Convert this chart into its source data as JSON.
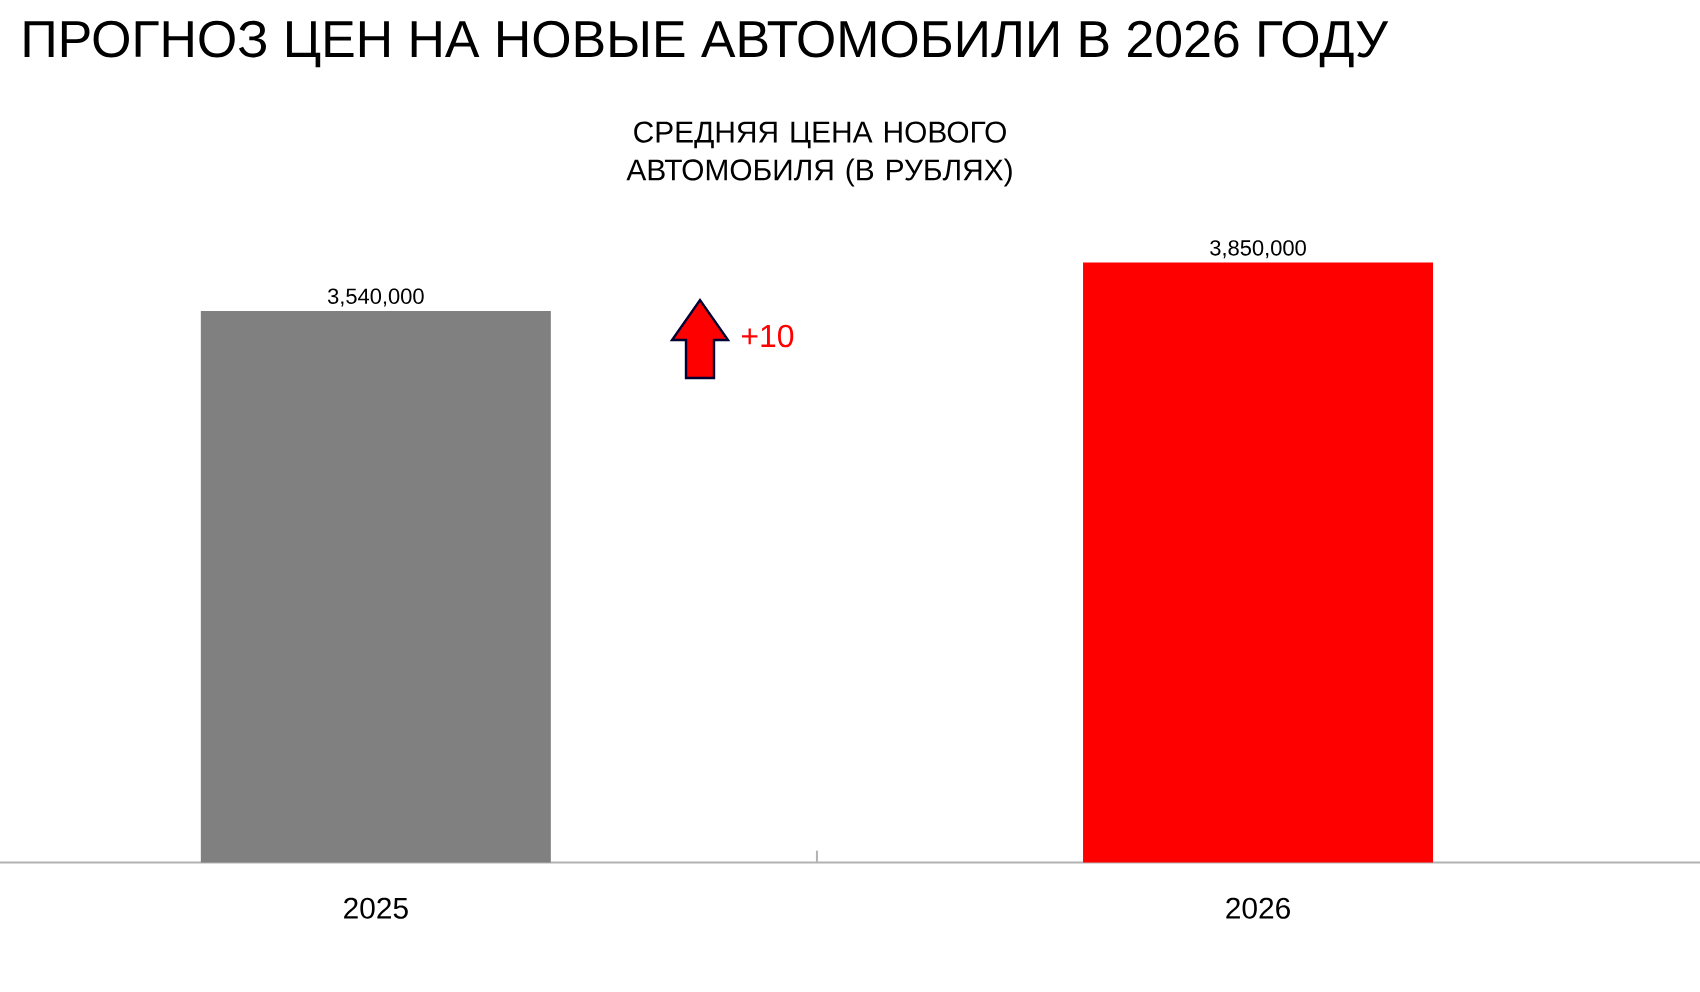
{
  "chart_data": {
    "type": "bar",
    "title": "ПРОГНОЗ ЦЕН НА НОВЫЕ АВТОМОБИЛИ В 2026 ГОДУ",
    "subtitle": "СРЕДНЯЯ ЦЕНА НОВОГО АВТОМОБИЛЯ (В РУБЛЯХ)",
    "categories": [
      "2025",
      "2026"
    ],
    "values": [
      3540000,
      3850000
    ],
    "colors": [
      "#808080",
      "#ff0000"
    ],
    "value_labels": [
      "3,540,000",
      "3,850,000"
    ],
    "tick_labels": "x",
    "annotations": [
      "+10"
    ]
  }
}
